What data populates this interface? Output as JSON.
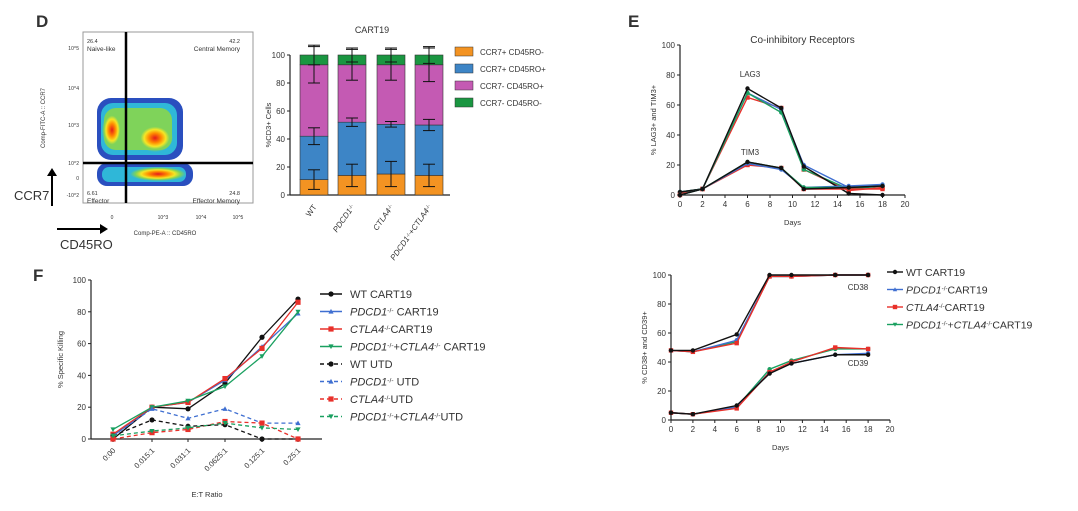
{
  "panel_labels": {
    "d": "D",
    "e": "E",
    "f": "F"
  },
  "flow_plot": {
    "y_axis_title": "Comp-FITC-A :: CCR7",
    "x_axis_title": "Comp-PE-A :: CD45RO",
    "y_arrow_label": "CCR7",
    "x_arrow_label": "CD45RO",
    "y_ticks": [
      "10^5",
      "10^4",
      "10^3",
      "10^2",
      "0",
      "-10^2"
    ],
    "x_ticks": [
      "0",
      "10^3",
      "10^4",
      "10^5"
    ],
    "quadrants": [
      {
        "value": "26.4",
        "name": "Naive-like"
      },
      {
        "value": "42.2",
        "name": "Central Memory"
      },
      {
        "value": "6.61",
        "name": "Effector"
      },
      {
        "value": "24.8",
        "name": "Effector Memory"
      }
    ]
  },
  "chart_data": [
    {
      "type": "bar",
      "stacked": true,
      "title": "CART19",
      "ylabel": "%CD3+ Cells",
      "ylim": [
        0,
        100
      ],
      "yticks": [
        0,
        20,
        40,
        60,
        80,
        100
      ],
      "legend_position": "right",
      "categories": [
        [
          {
            "t": "WT"
          }
        ],
        [
          {
            "t": "PDCD1",
            "i": true
          },
          {
            "t": "-/-",
            "sup": true
          }
        ],
        [
          {
            "t": "CTLA4",
            "i": true
          },
          {
            "t": "-/-",
            "sup": true
          }
        ],
        [
          {
            "t": "PDCD1",
            "i": true
          },
          {
            "t": "-/-",
            "sup": true
          },
          {
            "t": "+"
          },
          {
            "t": "CTLA4",
            "i": true
          },
          {
            "t": "-/-",
            "sup": true
          }
        ]
      ],
      "series": [
        {
          "name": "CCR7+ CD45RO-",
          "color": "#f39322",
          "values": [
            11,
            14,
            15,
            14
          ],
          "error": [
            7,
            8,
            9,
            8
          ]
        },
        {
          "name": "CCR7+ CD45RO+",
          "color": "#3d85c6",
          "values": [
            31,
            38,
            35.5,
            36
          ],
          "error": [
            6,
            3,
            2,
            4
          ]
        },
        {
          "name": "CCR7- CD45RO+",
          "color": "#c45ab3",
          "values": [
            51,
            41,
            42.5,
            43
          ],
          "error": [
            13,
            11,
            11,
            12
          ]
        },
        {
          "name": "CCR7- CD45RO-",
          "color": "#1a9641",
          "values": [
            7,
            7,
            7,
            7
          ],
          "error": [
            7,
            5,
            5,
            6
          ]
        }
      ]
    },
    {
      "type": "line",
      "title": "Co-inhibitory Receptors",
      "xlabel": "Days",
      "ylabel": "% LAG3+ and TIM3+",
      "xlim": [
        0,
        20
      ],
      "ylim": [
        0,
        100
      ],
      "xticks": [
        0,
        2,
        4,
        6,
        8,
        10,
        12,
        14,
        16,
        18,
        20
      ],
      "yticks": [
        0,
        20,
        40,
        60,
        80,
        100
      ],
      "annotations": [
        "LAG3",
        "TIM3"
      ],
      "x": [
        0,
        2,
        6,
        9,
        11,
        15,
        18
      ],
      "groups": [
        {
          "label": "LAG3",
          "series": [
            {
              "color": "#e8302a",
              "values": [
                1,
                4,
                65,
                58,
                17,
                3,
                5
              ]
            },
            {
              "color": "#3f6fd1",
              "values": [
                2,
                4,
                68,
                57,
                20,
                5,
                6
              ]
            },
            {
              "color": "#1aa060",
              "values": [
                2,
                4,
                68,
                55,
                17,
                4,
                6
              ]
            },
            {
              "color": "#111111",
              "values": [
                2,
                4,
                71,
                58,
                19,
                1,
                0
              ]
            }
          ]
        },
        {
          "label": "TIM3",
          "series": [
            {
              "color": "#e8302a",
              "values": [
                0,
                4,
                20,
                18,
                4,
                4,
                4
              ]
            },
            {
              "color": "#3f6fd1",
              "values": [
                0,
                4,
                21,
                17,
                5,
                6,
                7
              ]
            },
            {
              "color": "#1aa060",
              "values": [
                0,
                4,
                22,
                18,
                5,
                5,
                6
              ]
            },
            {
              "color": "#111111",
              "values": [
                0,
                4,
                22,
                18,
                4,
                5,
                6
              ]
            }
          ]
        }
      ]
    },
    {
      "type": "line",
      "xlabel": "Days",
      "ylabel": "% CD38+ and CD39+",
      "xlim": [
        0,
        20
      ],
      "ylim": [
        0,
        100
      ],
      "xticks": [
        0,
        2,
        4,
        6,
        8,
        10,
        12,
        14,
        16,
        18,
        20
      ],
      "yticks": [
        0,
        20,
        40,
        60,
        80,
        100
      ],
      "annotations": [
        "CD38",
        "CD39"
      ],
      "legend_position": "right",
      "x": [
        0,
        2,
        6,
        9,
        11,
        15,
        18
      ],
      "legend": [
        {
          "color": "#111111",
          "marker": "circle",
          "parts": [
            {
              "t": "WT CART19"
            }
          ]
        },
        {
          "color": "#3f6fd1",
          "marker": "triangle",
          "parts": [
            {
              "t": "PDCD1",
              "i": true
            },
            {
              "t": "-/-",
              "sup": true
            },
            {
              "t": "CART19"
            }
          ]
        },
        {
          "color": "#e8302a",
          "marker": "square",
          "parts": [
            {
              "t": "CTLA4",
              "i": true
            },
            {
              "t": "-/-",
              "sup": true
            },
            {
              "t": "CART19"
            }
          ]
        },
        {
          "color": "#1aa060",
          "marker": "triangle-down",
          "parts": [
            {
              "t": "PDCD1",
              "i": true
            },
            {
              "t": "-/-",
              "sup": true
            },
            {
              "t": "+"
            },
            {
              "t": "CTLA4",
              "i": true
            },
            {
              "t": "-/-",
              "sup": true
            },
            {
              "t": "CART19"
            }
          ]
        }
      ],
      "groups": [
        {
          "label": "CD38",
          "series": [
            {
              "color": "#1aa060",
              "values": [
                48,
                47,
                54,
                99,
                99,
                100,
                100
              ]
            },
            {
              "color": "#3f6fd1",
              "values": [
                48,
                47,
                55,
                99,
                99,
                100,
                100
              ]
            },
            {
              "color": "#e8302a",
              "values": [
                48,
                47,
                53,
                99,
                99,
                100,
                100
              ]
            },
            {
              "color": "#111111",
              "values": [
                48,
                48,
                59,
                100,
                100,
                100,
                100
              ]
            }
          ]
        },
        {
          "label": "CD39",
          "series": [
            {
              "color": "#1aa060",
              "values": [
                5,
                4,
                9,
                35,
                41,
                49,
                49
              ]
            },
            {
              "color": "#3f6fd1",
              "values": [
                5,
                4,
                9,
                33,
                39,
                45,
                46
              ]
            },
            {
              "color": "#e8302a",
              "values": [
                5,
                4,
                8,
                33,
                40,
                50,
                49
              ]
            },
            {
              "color": "#111111",
              "values": [
                5,
                4,
                10,
                32,
                39,
                45,
                45
              ]
            }
          ]
        }
      ]
    },
    {
      "type": "line",
      "xlabel": "E:T Ratio",
      "ylabel": "% Specific Killing",
      "ylim": [
        0,
        100
      ],
      "yticks": [
        0,
        20,
        40,
        60,
        80,
        100
      ],
      "categories": [
        "0:00",
        "0.015:1",
        "0.031:1",
        "0.0625:1",
        "0.125:1",
        "0.25:1"
      ],
      "legend_position": "right",
      "series": [
        {
          "color": "#111111",
          "marker": "circle",
          "dashed": false,
          "parts": [
            {
              "t": "WT CART19"
            }
          ],
          "values": [
            0,
            20,
            19,
            35,
            64,
            88
          ]
        },
        {
          "color": "#3f6fd1",
          "marker": "triangle",
          "dashed": false,
          "parts": [
            {
              "t": "PDCD1",
              "i": true
            },
            {
              "t": "-/-",
              "sup": true
            },
            {
              "t": " CART19"
            }
          ],
          "values": [
            2,
            20,
            23,
            37,
            58,
            79
          ]
        },
        {
          "color": "#e8302a",
          "marker": "square",
          "dashed": false,
          "parts": [
            {
              "t": "CTLA4",
              "i": true
            },
            {
              "t": "-/-",
              "sup": true
            },
            {
              "t": "CART19"
            }
          ],
          "values": [
            3,
            20,
            23,
            38,
            57,
            86
          ]
        },
        {
          "color": "#1aa060",
          "marker": "triangle-down",
          "dashed": false,
          "parts": [
            {
              "t": "PDCD1",
              "i": true
            },
            {
              "t": "-/-",
              "sup": true
            },
            {
              "t": "+"
            },
            {
              "t": "CTLA4",
              "i": true
            },
            {
              "t": "-/-",
              "sup": true
            },
            {
              "t": " CART19"
            }
          ],
          "values": [
            6,
            20,
            24,
            33,
            52,
            80
          ]
        },
        {
          "color": "#111111",
          "marker": "circle",
          "dashed": true,
          "parts": [
            {
              "t": "WT UTD"
            }
          ],
          "values": [
            2,
            12,
            8,
            9,
            0,
            0
          ]
        },
        {
          "color": "#3f6fd1",
          "marker": "triangle",
          "dashed": true,
          "parts": [
            {
              "t": "PDCD1",
              "i": true
            },
            {
              "t": "-/-",
              "sup": true
            },
            {
              "t": " UTD"
            }
          ],
          "values": [
            2,
            19,
            13,
            19,
            10,
            10
          ]
        },
        {
          "color": "#e8302a",
          "marker": "square",
          "dashed": true,
          "parts": [
            {
              "t": "CTLA4",
              "i": true
            },
            {
              "t": "-/-",
              "sup": true
            },
            {
              "t": "UTD"
            }
          ],
          "values": [
            0,
            4,
            6,
            11,
            10,
            0
          ]
        },
        {
          "color": "#1aa060",
          "marker": "triangle-down",
          "dashed": true,
          "parts": [
            {
              "t": "PDCD1",
              "i": true
            },
            {
              "t": "-/-",
              "sup": true
            },
            {
              "t": "+"
            },
            {
              "t": "CTLA4",
              "i": true
            },
            {
              "t": "-/-",
              "sup": true
            },
            {
              "t": "UTD"
            }
          ],
          "values": [
            2,
            5,
            7,
            10,
            7,
            6
          ]
        }
      ]
    }
  ]
}
